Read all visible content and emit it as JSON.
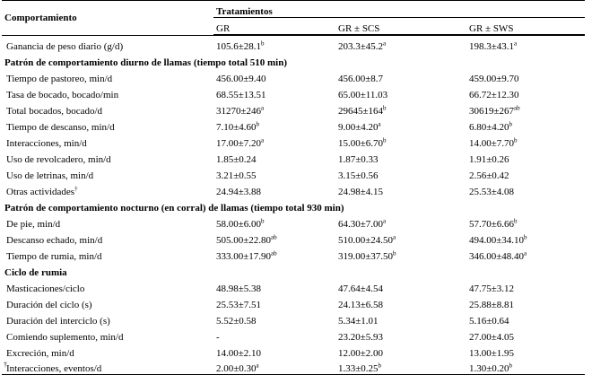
{
  "header": {
    "col_label": "Comportamiento",
    "treatments_label": "Tratamientos",
    "treatments": [
      "GR",
      "GR ± SCS",
      "GR ± SWS"
    ]
  },
  "rows": [
    {
      "kind": "data",
      "label": "Ganancia de peso diario (g/d)",
      "values": [
        [
          "105.6±28.1",
          "b"
        ],
        [
          "203.3±45.2",
          "a"
        ],
        [
          "198.3±43.1",
          "a"
        ]
      ]
    },
    {
      "kind": "section",
      "label": "Patrón de comportamiento diurno de llamas (tiempo total 510 min)"
    },
    {
      "kind": "data",
      "label": "Tiempo de pastoreo, min/d",
      "values": [
        [
          "456.00±9.40",
          ""
        ],
        [
          "456.00±8.7",
          ""
        ],
        [
          "459.00±9.70",
          ""
        ]
      ]
    },
    {
      "kind": "data",
      "label": "Tasa de bocado, bocado/min",
      "values": [
        [
          "68.55±13.51",
          ""
        ],
        [
          "65.00±11.03",
          ""
        ],
        [
          "66.72±12.30",
          ""
        ]
      ]
    },
    {
      "kind": "data",
      "label": "Total bocados, bocado/d",
      "values": [
        [
          "31270±246",
          "a"
        ],
        [
          "29645±164",
          "b"
        ],
        [
          "30619±267",
          "ab"
        ]
      ]
    },
    {
      "kind": "data",
      "label": "Tiempo de descanso, min/d",
      "values": [
        [
          "7.10±4.60",
          "b"
        ],
        [
          "9.00±4.20",
          "a"
        ],
        [
          "6.80±4.20",
          "b"
        ]
      ]
    },
    {
      "kind": "data",
      "label": "Interacciones, min/d",
      "values": [
        [
          "17.00±7.20",
          "a"
        ],
        [
          "15.00±6.70",
          "b"
        ],
        [
          "14.00±7.70",
          "b"
        ]
      ]
    },
    {
      "kind": "data",
      "label": "Uso de revolcadero, min/d",
      "values": [
        [
          "1.85±0.24",
          ""
        ],
        [
          "1.87±0.33",
          ""
        ],
        [
          "1.91±0.26",
          ""
        ]
      ]
    },
    {
      "kind": "data",
      "label": "Uso de letrinas, min/d",
      "values": [
        [
          "3.21±0.55",
          ""
        ],
        [
          "3.15±0.56",
          ""
        ],
        [
          "2.56±0.42",
          ""
        ]
      ]
    },
    {
      "kind": "data",
      "label": "Otras actividades",
      "label_sup": "†",
      "values": [
        [
          "24.94±3.88",
          ""
        ],
        [
          "24.98±4.15",
          ""
        ],
        [
          "25.53±4.08",
          ""
        ]
      ]
    },
    {
      "kind": "section",
      "label": "Patrón de comportamiento nocturno (en corral) de llamas (tiempo total 930 min)"
    },
    {
      "kind": "data",
      "label": "De pie, min/d",
      "values": [
        [
          "58.00±6.00",
          "b"
        ],
        [
          "64.30±7.00",
          "a"
        ],
        [
          "57.70±6.66",
          "b"
        ]
      ]
    },
    {
      "kind": "data",
      "label": "Descanso echado, min/d",
      "values": [
        [
          "505.00±22.80",
          "ab"
        ],
        [
          "510.00±24.50",
          "a"
        ],
        [
          "494.00±34.10",
          "b"
        ]
      ]
    },
    {
      "kind": "data",
      "label": "Tiempo de rumia, min/d",
      "values": [
        [
          "333.00±17.90",
          "ab"
        ],
        [
          "319.00±37.50",
          "b"
        ],
        [
          "346.00±48.40",
          "a"
        ]
      ]
    },
    {
      "kind": "section",
      "label": "Ciclo de rumia"
    },
    {
      "kind": "data",
      "label": "Masticaciones/ciclo",
      "values": [
        [
          "48.98±5.38",
          ""
        ],
        [
          "47.64±4.54",
          ""
        ],
        [
          "47.75±3.12",
          ""
        ]
      ]
    },
    {
      "kind": "data",
      "label": "Duración del ciclo (s)",
      "values": [
        [
          "25.53±7.51",
          ""
        ],
        [
          "24.13±6.58",
          ""
        ],
        [
          "25.88±8.81",
          ""
        ]
      ]
    },
    {
      "kind": "data",
      "label": "Duración del interciclo (s)",
      "values": [
        [
          "5.52±0.58",
          ""
        ],
        [
          "5.34±1.01",
          ""
        ],
        [
          "5.16±0.64",
          ""
        ]
      ]
    },
    {
      "kind": "data",
      "label": "Comiendo suplemento, min/d",
      "values": [
        [
          "-",
          ""
        ],
        [
          "23.20±5.93",
          ""
        ],
        [
          "27.00±4.05",
          ""
        ]
      ]
    },
    {
      "kind": "data",
      "label": "Excreción, min/d",
      "values": [
        [
          "14.00±2.10",
          ""
        ],
        [
          "12.00±2.00",
          ""
        ],
        [
          "13.00±1.95",
          ""
        ]
      ]
    },
    {
      "kind": "data",
      "label": "Interacciones, eventos/d",
      "values": [
        [
          "2.00±0.30",
          "a"
        ],
        [
          "1.33±0.25",
          "b"
        ],
        [
          "1.30±0.20",
          "b"
        ]
      ]
    }
  ],
  "footnote_mark": "†"
}
